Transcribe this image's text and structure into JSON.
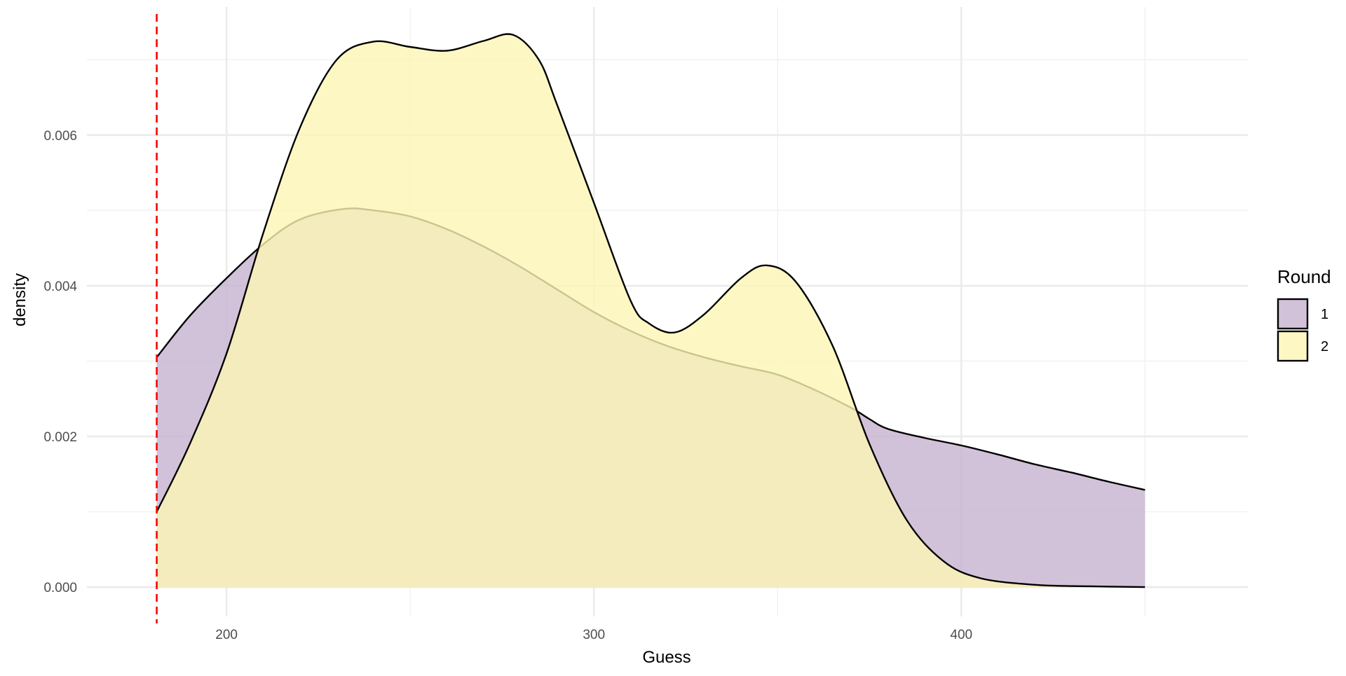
{
  "chart_data": {
    "type": "area",
    "subtype": "density",
    "title": "",
    "xlabel": "Guess",
    "ylabel": "density",
    "xlim": [
      162,
      478
    ],
    "ylim": [
      -0.00039,
      0.0077
    ],
    "x_ticks": [
      200,
      300,
      400
    ],
    "x_tick_labels": [
      "200",
      "300",
      "400"
    ],
    "x_minor_gridlines": [
      250,
      350,
      450
    ],
    "y_ticks": [
      0.0,
      0.002,
      0.004,
      0.006
    ],
    "y_tick_labels": [
      "0.000",
      "0.002",
      "0.004",
      "0.006"
    ],
    "y_minor_gridlines": [
      0.001,
      0.003,
      0.005,
      0.007
    ],
    "grid": true,
    "reference_line": {
      "x": 181,
      "color": "#ff0000",
      "style": "dashed"
    },
    "legend": {
      "title": "Round",
      "position": "right"
    },
    "series": [
      {
        "name": "1",
        "fill": "#c6b3cf",
        "line_color": "#000000",
        "x": [
          181,
          190,
          200,
          210,
          220,
          232,
          240,
          250,
          260,
          270,
          280,
          290,
          300,
          310,
          320,
          330,
          340,
          350,
          360,
          370,
          375,
          380,
          390,
          400,
          410,
          420,
          430,
          440,
          450
        ],
        "y": [
          0.00305,
          0.0036,
          0.0041,
          0.00455,
          0.00488,
          0.00502,
          0.005,
          0.00492,
          0.00475,
          0.00452,
          0.00425,
          0.00395,
          0.00365,
          0.0034,
          0.0032,
          0.00305,
          0.00293,
          0.00282,
          0.00262,
          0.00238,
          0.00223,
          0.0021,
          0.00198,
          0.00188,
          0.00176,
          0.00163,
          0.00152,
          0.0014,
          0.00129
        ]
      },
      {
        "name": "2",
        "fill": "#fcf6b4",
        "line_color": "#000000",
        "x": [
          181,
          190,
          200,
          210,
          220,
          230,
          240,
          250,
          260,
          270,
          278,
          285,
          290,
          300,
          310,
          315,
          322,
          330,
          340,
          347,
          355,
          365,
          375,
          385,
          395,
          405,
          420,
          435,
          450
        ],
        "y": [
          0.001,
          0.0019,
          0.0031,
          0.0047,
          0.0061,
          0.007,
          0.00724,
          0.00717,
          0.00712,
          0.00725,
          0.00733,
          0.007,
          0.0064,
          0.0051,
          0.0038,
          0.0035,
          0.00338,
          0.00362,
          0.0041,
          0.00427,
          0.00405,
          0.0032,
          0.0019,
          0.0009,
          0.00035,
          0.00012,
          3e-05,
          1e-05,
          0.0
        ]
      }
    ]
  }
}
